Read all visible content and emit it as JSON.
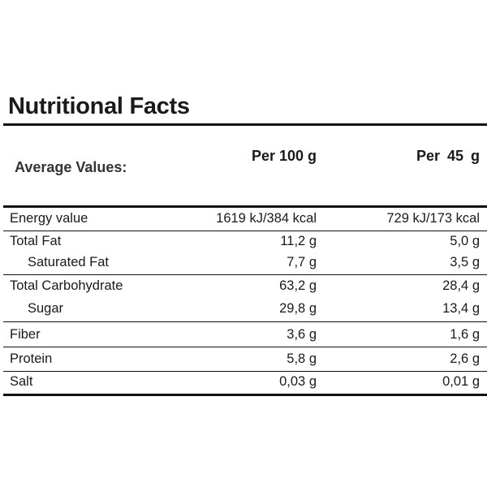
{
  "title": "Nutritional Facts",
  "header": {
    "label": "Average Values:",
    "col1": "Per 100 g",
    "col2": "Per  45 g"
  },
  "rows": [
    {
      "label": "Energy value",
      "per100": "1619 kJ/384 kcal",
      "per45": "729 kJ/173 kcal"
    },
    {
      "label": "Total Fat",
      "per100": "11,2 g",
      "per45": "5,0 g"
    },
    {
      "label": "Saturated Fat",
      "per100": "7,7 g",
      "per45": "3,5 g"
    },
    {
      "label": "Total Carbohydrate",
      "per100": "63,2 g",
      "per45": "28,4 g"
    },
    {
      "label": "Sugar",
      "per100": "29,8 g",
      "per45": "13,4 g"
    },
    {
      "label": "Fiber",
      "per100": "3,6 g",
      "per45": "1,6 g"
    },
    {
      "label": "Protein",
      "per100": "5,8 g",
      "per45": "2,6 g"
    },
    {
      "label": "Salt",
      "per100": "0,03 g",
      "per45": "0,01 g"
    }
  ]
}
